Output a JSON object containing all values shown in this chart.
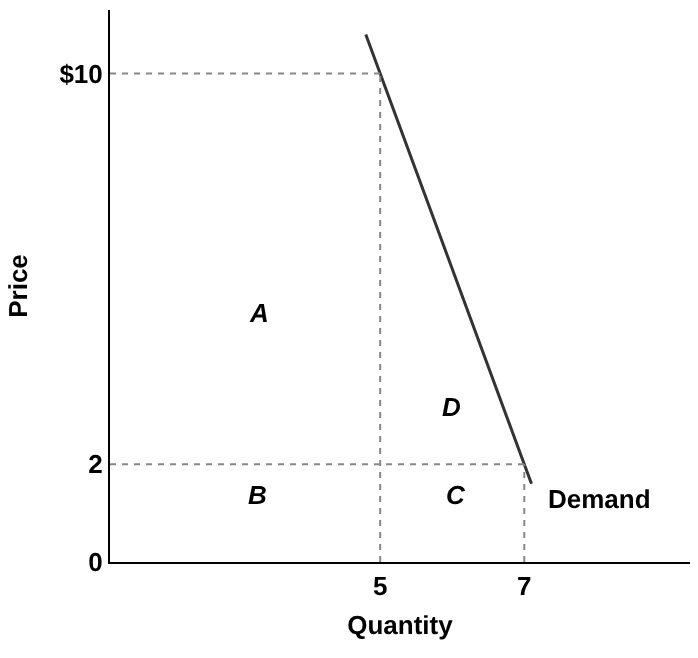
{
  "chart_data": {
    "type": "line",
    "xlabel": "Quantity",
    "ylabel": "Price",
    "xlim": [
      1.25,
      9.3
    ],
    "xticks": [
      5,
      7
    ],
    "ylim": [
      0,
      11.3
    ],
    "yticks": [
      0,
      2,
      {
        "value": 10,
        "label": "$10"
      }
    ],
    "grid": false,
    "legend": false,
    "marker": "none",
    "series": [
      {
        "name": "Demand",
        "color": "#333333",
        "line_style": "solid",
        "x": [
          4.8,
          5,
          7,
          7.1
        ],
        "values": [
          10.8,
          10,
          2,
          1.6
        ]
      },
      {
        "color": "#888888",
        "line_style": "dotted",
        "x": [
          1.25,
          5
        ],
        "values": [
          10,
          10
        ]
      },
      {
        "color": "#888888",
        "line_style": "dotted",
        "x": [
          1.25,
          7
        ],
        "values": [
          2,
          2
        ]
      },
      {
        "color": "#888888",
        "line_style": "dotted",
        "x": [
          5,
          5
        ],
        "values": [
          0,
          10
        ]
      },
      {
        "color": "#888888",
        "line_style": "dotted",
        "x": [
          7,
          7
        ],
        "values": [
          0,
          2
        ]
      }
    ],
    "annotations": [
      "A",
      "B",
      "C",
      "D"
    ]
  }
}
